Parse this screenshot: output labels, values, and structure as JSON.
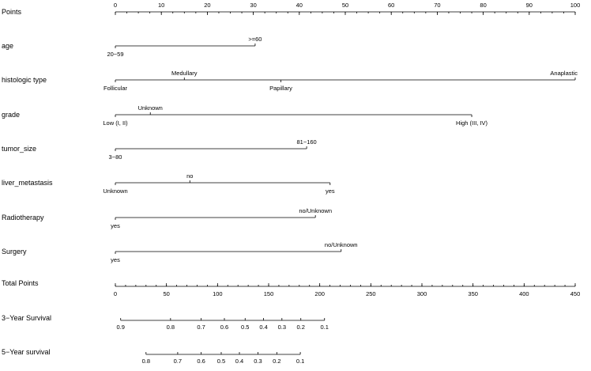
{
  "chart_data": {
    "type": "nomogram",
    "points_axis": {
      "label": "Points",
      "range": [
        0,
        100
      ],
      "major": [
        0,
        10,
        20,
        30,
        40,
        50,
        60,
        70,
        80,
        90,
        100
      ],
      "minor_step": 2.5
    },
    "variables": [
      {
        "name": "age",
        "levels": [
          {
            "label": "20−59",
            "points": 0,
            "pos": "below"
          },
          {
            "label": ">=60",
            "points": 30.4,
            "pos": "above"
          }
        ]
      },
      {
        "name": "histologic type",
        "levels": [
          {
            "label": "Follicular",
            "points": 0,
            "pos": "below"
          },
          {
            "label": "Medullary",
            "points": 15,
            "pos": "above"
          },
          {
            "label": "Papillary",
            "points": 36,
            "pos": "below"
          },
          {
            "label": "Anaplastic",
            "points": 100,
            "pos": "above"
          }
        ]
      },
      {
        "name": "grade",
        "levels": [
          {
            "label": "Low (I, II)",
            "points": 0,
            "pos": "below"
          },
          {
            "label": "Unknown",
            "points": 7.6,
            "pos": "above"
          },
          {
            "label": "High (III, IV)",
            "points": 77.5,
            "pos": "below"
          }
        ]
      },
      {
        "name": "tumor_size",
        "levels": [
          {
            "label": "3−80",
            "points": 0,
            "pos": "below"
          },
          {
            "label": "81−160",
            "points": 41.6,
            "pos": "above"
          }
        ]
      },
      {
        "name": "liver_metastasis",
        "levels": [
          {
            "label": "Unknown",
            "points": 0,
            "pos": "below"
          },
          {
            "label": "no",
            "points": 16.2,
            "pos": "above"
          },
          {
            "label": "yes",
            "points": 46.7,
            "pos": "below"
          }
        ]
      },
      {
        "name": "Radiotherapy",
        "levels": [
          {
            "label": "yes",
            "points": 0,
            "pos": "below"
          },
          {
            "label": "no/Unknown",
            "points": 43.5,
            "pos": "above"
          }
        ]
      },
      {
        "name": "Surgery",
        "levels": [
          {
            "label": "yes",
            "points": 0,
            "pos": "below"
          },
          {
            "label": "no/Unknown",
            "points": 49.1,
            "pos": "above"
          }
        ]
      }
    ],
    "total_points_axis": {
      "label": "Total Points",
      "range": [
        0,
        450
      ],
      "major": [
        0,
        50,
        100,
        150,
        200,
        250,
        300,
        350,
        400,
        450
      ],
      "minor_step": 10
    },
    "survival_axes": [
      {
        "label": "3−Year Survival",
        "ticks": [
          {
            "label": "0.9",
            "total": 5.2
          },
          {
            "label": "0.8",
            "total": 54
          },
          {
            "label": "0.7",
            "total": 84
          },
          {
            "label": "0.6",
            "total": 106.7
          },
          {
            "label": "0.5",
            "total": 127
          },
          {
            "label": "0.4",
            "total": 145
          },
          {
            "label": "0.3",
            "total": 163
          },
          {
            "label": "0.2",
            "total": 181.5
          },
          {
            "label": "0.1",
            "total": 204.7
          }
        ]
      },
      {
        "label": "5−Year survival",
        "ticks": [
          {
            "label": "0.8",
            "total": 30
          },
          {
            "label": "0.7",
            "total": 61
          },
          {
            "label": "0.6",
            "total": 84
          },
          {
            "label": "0.5",
            "total": 103.6
          },
          {
            "label": "0.4",
            "total": 121.4
          },
          {
            "label": "0.3",
            "total": 139.5
          },
          {
            "label": "0.2",
            "total": 158
          },
          {
            "label": "0.1",
            "total": 181
          }
        ]
      }
    ]
  }
}
